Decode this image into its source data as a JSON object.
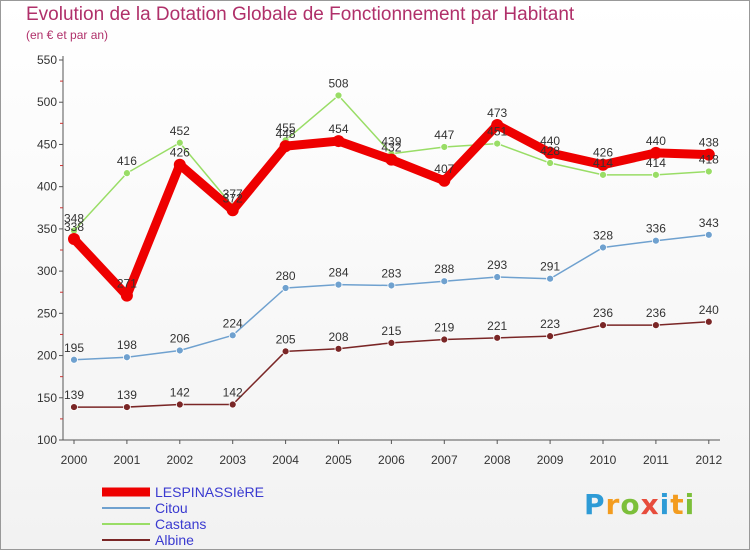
{
  "header": {
    "title": "Evolution de la Dotation Globale de Fonctionnement par Habitant",
    "subtitle": "(en € et par an)"
  },
  "logo": {
    "text": "Proxiti",
    "letters": [
      "P",
      "r",
      "o",
      "x",
      "i",
      "t",
      "i"
    ],
    "colors": [
      "#2e9bd6",
      "#f39c1f",
      "#7cbf3a",
      "#e74c3c",
      "#2e9bd6",
      "#f39c1f",
      "#7cbf3a"
    ]
  },
  "chart_data": {
    "type": "line",
    "title": "Evolution de la Dotation Globale de Fonctionnement par Habitant",
    "subtitle": "(en € et par an)",
    "xlabel": "",
    "ylabel": "",
    "ylim": [
      100,
      550
    ],
    "yticks": [
      100,
      150,
      200,
      250,
      300,
      350,
      400,
      450,
      500,
      550
    ],
    "grid": false,
    "legend_position": "bottom-left",
    "x": [
      "2000",
      "2001",
      "2002",
      "2003",
      "2004",
      "2005",
      "2006",
      "2007",
      "2008",
      "2009",
      "2010",
      "2011",
      "2012"
    ],
    "series": [
      {
        "name": "LESPINASSIèRE",
        "color": "#ee0000",
        "width": "thick",
        "values": [
          338,
          271,
          426,
          372,
          448,
          454,
          432,
          407,
          473,
          440,
          426,
          440,
          438
        ]
      },
      {
        "name": "Citou",
        "color": "#6fa1cf",
        "width": "thin",
        "values": [
          195,
          198,
          206,
          224,
          280,
          284,
          283,
          288,
          293,
          291,
          328,
          336,
          343
        ]
      },
      {
        "name": "Castans",
        "color": "#99dd66",
        "width": "thin",
        "values": [
          348,
          416,
          452,
          377,
          455,
          508,
          439,
          447,
          451,
          428,
          414,
          414,
          418
        ]
      },
      {
        "name": "Albine",
        "color": "#7a2626",
        "width": "thin",
        "values": [
          139,
          139,
          142,
          142,
          205,
          208,
          215,
          219,
          221,
          223,
          236,
          236,
          240
        ]
      }
    ]
  }
}
